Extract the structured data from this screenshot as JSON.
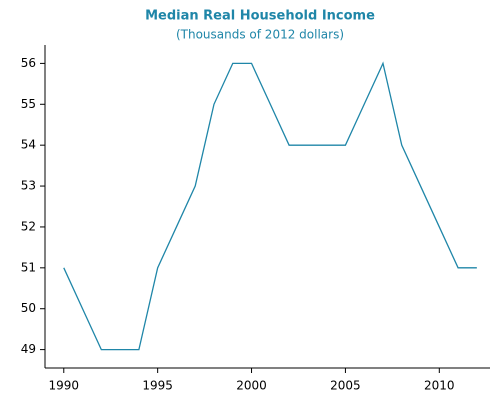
{
  "chart_data": {
    "type": "line",
    "title": "Median Real Household Income",
    "subtitle": "(Thousands of 2012 dollars)",
    "x": [
      1990,
      1991,
      1992,
      1993,
      1994,
      1995,
      1996,
      1997,
      1998,
      1999,
      2000,
      2001,
      2002,
      2003,
      2004,
      2005,
      2006,
      2007,
      2008,
      2009,
      2010,
      2011,
      2012
    ],
    "series": [
      {
        "color": "#1f86a8",
        "values": [
          51,
          50,
          49,
          49,
          49,
          51,
          52,
          53,
          55,
          56,
          56,
          55,
          54,
          54,
          54,
          54,
          55,
          56,
          54,
          53,
          52,
          51,
          51
        ]
      }
    ],
    "xlim": [
      1989,
      2012.7
    ],
    "xticks": [
      1990,
      1995,
      2000,
      2005,
      2010
    ],
    "ylim": [
      48.55,
      56.45
    ],
    "yticks": [
      49,
      50,
      51,
      52,
      53,
      54,
      55,
      56
    ],
    "title_color": "#1f86a8"
  }
}
